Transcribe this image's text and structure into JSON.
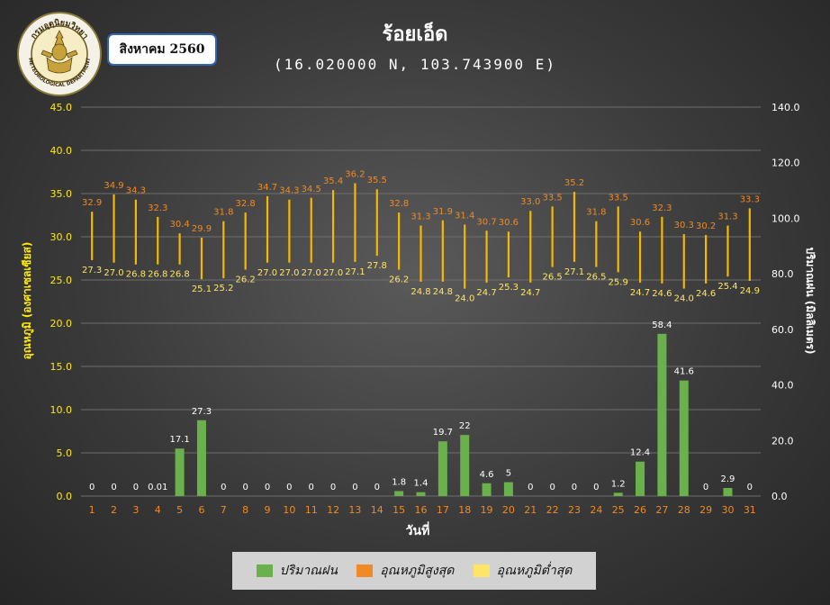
{
  "header": {
    "title": "ร้อยเอ็ด",
    "subtitle": "(16.020000 N, 103.743900 E)",
    "month_label": "สิงหาคม 2560"
  },
  "logo": {
    "text": "กรมอุตุนิยมวิทยา METEOROLOGICAL DEPARTMENT"
  },
  "colors": {
    "rain": "#6ab04c",
    "tmax_label": "#f08a24",
    "tmin_label": "#ffe566",
    "range_line": "#f5b800",
    "axis_text": "#ffea00"
  },
  "chart_data": {
    "type": "bar",
    "xlabel": "วันที่",
    "ylabel_left": "อุณหภูมิ (องศาเซลเซียส)",
    "ylabel_right": "ปริมาณฝน (มิลลิเมตร)",
    "ylim_left": [
      0,
      45
    ],
    "ylim_right": [
      0,
      140
    ],
    "yticks_left": [
      "0.0",
      "5.0",
      "10.0",
      "15.0",
      "20.0",
      "25.0",
      "30.0",
      "35.0",
      "40.0",
      "45.0"
    ],
    "yticks_right": [
      "0.0",
      "20.0",
      "40.0",
      "60.0",
      "80.0",
      "100.0",
      "120.0",
      "140.0"
    ],
    "categories": [
      "1",
      "2",
      "3",
      "4",
      "5",
      "6",
      "7",
      "8",
      "9",
      "10",
      "11",
      "12",
      "13",
      "14",
      "15",
      "16",
      "17",
      "18",
      "19",
      "20",
      "21",
      "22",
      "23",
      "24",
      "25",
      "26",
      "27",
      "28",
      "29",
      "30",
      "31"
    ],
    "series": [
      {
        "name": "ปริมาณฝน",
        "axis": "right",
        "values": [
          0,
          0,
          0,
          0.01,
          17.1,
          27.3,
          0,
          0,
          0,
          0,
          0,
          0,
          0,
          0,
          1.8,
          1.4,
          19.7,
          22,
          4.6,
          5,
          0,
          0,
          0,
          0,
          1.2,
          12.4,
          58.4,
          41.6,
          0,
          2.9,
          0
        ],
        "labels": [
          "0",
          "0",
          "0",
          "0.01",
          "17.1",
          "27.3",
          "0",
          "0",
          "0",
          "0",
          "0",
          "0",
          "0",
          "0",
          "1.8",
          "1.4",
          "19.7",
          "22",
          "4.6",
          "5",
          "0",
          "0",
          "0",
          "0",
          "1.2",
          "12.4",
          "58.4",
          "41.6",
          "0",
          "2.9",
          "0"
        ]
      },
      {
        "name": "อุณหภูมิสูงสุด",
        "axis": "left",
        "values": [
          32.9,
          34.9,
          34.3,
          32.3,
          30.4,
          29.9,
          31.8,
          32.8,
          34.7,
          34.3,
          34.5,
          35.4,
          36.2,
          35.5,
          32.8,
          31.3,
          31.9,
          31.4,
          30.7,
          30.6,
          33.0,
          33.5,
          35.2,
          31.8,
          33.5,
          30.6,
          32.3,
          30.3,
          30.2,
          31.3,
          33.3
        ]
      },
      {
        "name": "อุณหภูมิต่ำสุด",
        "axis": "left",
        "values": [
          27.3,
          27.0,
          26.8,
          26.8,
          26.8,
          25.1,
          25.2,
          26.2,
          27.0,
          27.0,
          27.0,
          27.0,
          27.1,
          27.8,
          26.2,
          24.8,
          24.8,
          24.0,
          24.7,
          25.3,
          24.7,
          26.5,
          27.1,
          26.5,
          25.9,
          24.7,
          24.6,
          24.0,
          24.6,
          25.4,
          24.9
        ]
      }
    ]
  }
}
